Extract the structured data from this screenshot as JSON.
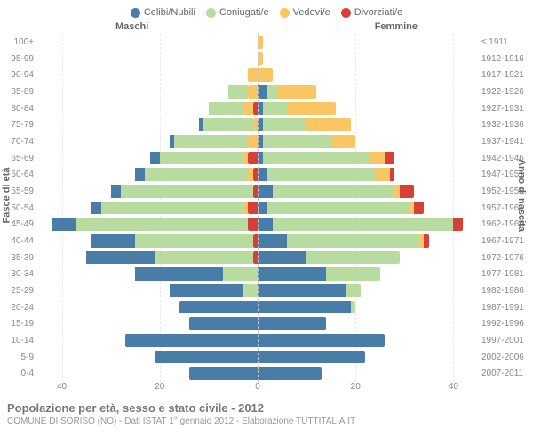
{
  "type": "population-pyramid",
  "background_color": "#ffffff",
  "legend": [
    {
      "label": "Celibi/Nubili",
      "color": "#4a7ca8"
    },
    {
      "label": "Coniugati/e",
      "color": "#b8dba0"
    },
    {
      "label": "Vedovi/e",
      "color": "#f9c663"
    },
    {
      "label": "Divorziati/e",
      "color": "#d64037"
    }
  ],
  "gender_left_label": "Maschi",
  "gender_right_label": "Femmine",
  "y_left_title": "Fasce di età",
  "y_right_title": "Anno di nascita",
  "age_groups": [
    "100+",
    "95-99",
    "90-94",
    "85-89",
    "80-84",
    "75-79",
    "70-74",
    "65-69",
    "60-64",
    "55-59",
    "50-54",
    "45-49",
    "40-44",
    "35-39",
    "30-34",
    "25-29",
    "20-24",
    "15-19",
    "10-14",
    "5-9",
    "0-4"
  ],
  "birth_years": [
    "≤ 1911",
    "1912-1916",
    "1917-1921",
    "1922-1926",
    "1927-1931",
    "1932-1936",
    "1937-1941",
    "1942-1946",
    "1947-1951",
    "1952-1956",
    "1957-1961",
    "1962-1966",
    "1967-1971",
    "1972-1976",
    "1977-1981",
    "1982-1986",
    "1987-1991",
    "1992-1996",
    "1997-2001",
    "2002-2006",
    "2007-2011"
  ],
  "x_max": 45,
  "x_ticks": [
    40,
    20,
    0,
    20,
    40
  ],
  "grid_color": "#e8e8e8",
  "male": [
    {
      "c": 0,
      "m": 0,
      "w": 0,
      "d": 0
    },
    {
      "c": 0,
      "m": 0,
      "w": 0,
      "d": 0
    },
    {
      "c": 0,
      "m": 0,
      "w": 2,
      "d": 0
    },
    {
      "c": 0,
      "m": 4,
      "w": 2,
      "d": 0
    },
    {
      "c": 0,
      "m": 7,
      "w": 2,
      "d": 1
    },
    {
      "c": 1,
      "m": 10,
      "w": 1,
      "d": 0
    },
    {
      "c": 1,
      "m": 15,
      "w": 2,
      "d": 0
    },
    {
      "c": 2,
      "m": 17,
      "w": 1,
      "d": 2
    },
    {
      "c": 2,
      "m": 21,
      "w": 1,
      "d": 1
    },
    {
      "c": 2,
      "m": 27,
      "w": 0,
      "d": 1
    },
    {
      "c": 2,
      "m": 29,
      "w": 1,
      "d": 2
    },
    {
      "c": 5,
      "m": 35,
      "w": 0,
      "d": 2
    },
    {
      "c": 9,
      "m": 24,
      "w": 0,
      "d": 1
    },
    {
      "c": 14,
      "m": 20,
      "w": 0,
      "d": 1
    },
    {
      "c": 18,
      "m": 7,
      "w": 0,
      "d": 0
    },
    {
      "c": 15,
      "m": 3,
      "w": 0,
      "d": 0
    },
    {
      "c": 16,
      "m": 0,
      "w": 0,
      "d": 0
    },
    {
      "c": 14,
      "m": 0,
      "w": 0,
      "d": 0
    },
    {
      "c": 27,
      "m": 0,
      "w": 0,
      "d": 0
    },
    {
      "c": 21,
      "m": 0,
      "w": 0,
      "d": 0
    },
    {
      "c": 14,
      "m": 0,
      "w": 0,
      "d": 0
    }
  ],
  "female": [
    {
      "c": 0,
      "m": 0,
      "w": 1,
      "d": 0
    },
    {
      "c": 0,
      "m": 0,
      "w": 1,
      "d": 0
    },
    {
      "c": 0,
      "m": 0,
      "w": 3,
      "d": 0
    },
    {
      "c": 2,
      "m": 2,
      "w": 8,
      "d": 0
    },
    {
      "c": 1,
      "m": 5,
      "w": 10,
      "d": 0
    },
    {
      "c": 1,
      "m": 9,
      "w": 9,
      "d": 0
    },
    {
      "c": 1,
      "m": 14,
      "w": 5,
      "d": 0
    },
    {
      "c": 1,
      "m": 22,
      "w": 3,
      "d": 2
    },
    {
      "c": 2,
      "m": 22,
      "w": 3,
      "d": 1
    },
    {
      "c": 3,
      "m": 25,
      "w": 1,
      "d": 3
    },
    {
      "c": 2,
      "m": 29,
      "w": 1,
      "d": 2
    },
    {
      "c": 3,
      "m": 37,
      "w": 0,
      "d": 2
    },
    {
      "c": 6,
      "m": 27,
      "w": 1,
      "d": 1
    },
    {
      "c": 10,
      "m": 19,
      "w": 0,
      "d": 0
    },
    {
      "c": 14,
      "m": 11,
      "w": 0,
      "d": 0
    },
    {
      "c": 18,
      "m": 3,
      "w": 0,
      "d": 0
    },
    {
      "c": 19,
      "m": 1,
      "w": 0,
      "d": 0
    },
    {
      "c": 14,
      "m": 0,
      "w": 0,
      "d": 0
    },
    {
      "c": 26,
      "m": 0,
      "w": 0,
      "d": 0
    },
    {
      "c": 22,
      "m": 0,
      "w": 0,
      "d": 0
    },
    {
      "c": 13,
      "m": 0,
      "w": 0,
      "d": 0
    }
  ],
  "footer_title": "Popolazione per età, sesso e stato civile - 2012",
  "footer_sub": "COMUNE DI SORISO (NO) - Dati ISTAT 1° gennaio 2012 - Elaborazione TUTTITALIA.IT",
  "text_color_label": "#888",
  "text_color_title": "#777",
  "fontsize_tick": 10,
  "fontsize_legend": 11,
  "fontsize_title": 13
}
